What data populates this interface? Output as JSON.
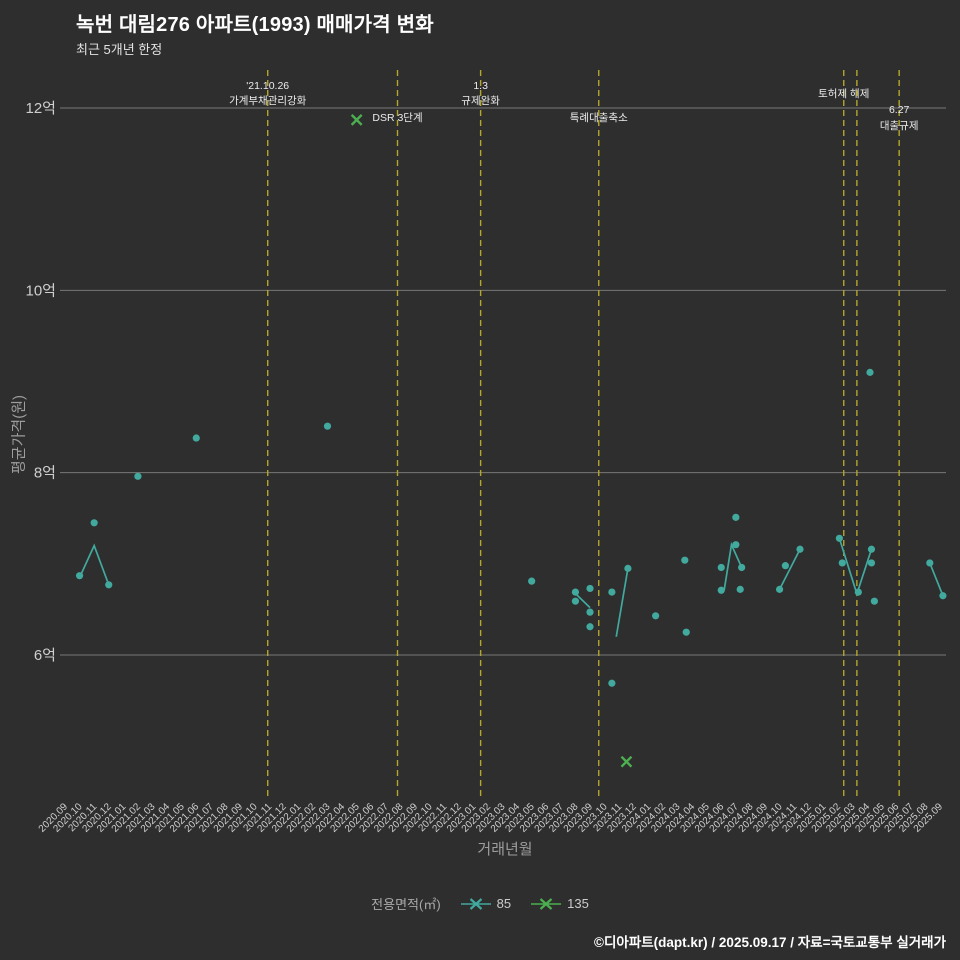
{
  "legend": {
    "title": "전용면적(㎡)",
    "items": [
      {
        "label": "85",
        "color": "#41a99e",
        "marker": "x-line"
      },
      {
        "label": "135",
        "color": "#4caf50",
        "marker": "x-line"
      }
    ]
  },
  "footer": {
    "text": "©디아파트(dapt.kr) / 2025.09.17 / 자료=국토교통부 실거래가"
  },
  "chart_data": {
    "type": "scatter",
    "title": "녹번 대림276 아파트(1993) 매매가격 변화",
    "subtitle": "최근 5개년 한정",
    "xlabel": "거래년월",
    "ylabel": "평균가격(원)",
    "unit": "억원",
    "grid": true,
    "legend_position": "bottom",
    "ylim": [
      4.4,
      12.4
    ],
    "y_ticks": [
      {
        "label": "12억",
        "value": 12
      },
      {
        "label": "10억",
        "value": 10
      },
      {
        "label": "8억",
        "value": 8
      },
      {
        "label": "6억",
        "value": 6
      }
    ],
    "x_tick_labels": [
      "2020.09",
      "2020.10",
      "2020.11",
      "2020.12",
      "2021.01",
      "2021.02",
      "2021.03",
      "2021.04",
      "2021.05",
      "2021.06",
      "2021.07",
      "2021.08",
      "2021.09",
      "2021.10",
      "2021.11",
      "2021.12",
      "2022.01",
      "2022.02",
      "2022.03",
      "2022.04",
      "2022.05",
      "2022.06",
      "2022.07",
      "2022.08",
      "2022.09",
      "2022.10",
      "2022.11",
      "2022.12",
      "2023.01",
      "2023.02",
      "2023.03",
      "2023.04",
      "2023.05",
      "2023.06",
      "2023.07",
      "2023.08",
      "2023.09",
      "2023.10",
      "2023.11",
      "2023.12",
      "2024.01",
      "2024.02",
      "2024.03",
      "2024.04",
      "2024.05",
      "2024.06",
      "2024.07",
      "2024.08",
      "2024.09",
      "2024.10",
      "2024.11",
      "2024.12",
      "2025.01",
      "2025.02",
      "2025.03",
      "2025.04",
      "2025.05",
      "2025.06",
      "2025.07",
      "2025.08",
      "2025.09"
    ],
    "colors": {
      "background": "#2e2e2e",
      "grid": "#787878",
      "tick": "#cfcfcf",
      "axis_label": "#9d9d9d",
      "event": "#b4a62a",
      "annotation": "#ececec"
    },
    "events": [
      {
        "month": 13.9,
        "labels": [
          {
            "text": "'21.10.26",
            "y": 89
          },
          {
            "text": "가계부채관리강화",
            "y": 104
          }
        ]
      },
      {
        "month": 22.8,
        "labels": [
          {
            "text": "DSR 3단계",
            "y": 121
          }
        ]
      },
      {
        "month": 28.5,
        "labels": [
          {
            "text": "1.3",
            "y": 89
          },
          {
            "text": "규제완화",
            "y": 104
          }
        ]
      },
      {
        "month": 36.6,
        "labels": [
          {
            "text": "특례대출축소",
            "y": 121
          }
        ]
      },
      {
        "month": 53.4,
        "labels": [
          {
            "text": "토허제 해제",
            "y": 97
          }
        ]
      },
      {
        "month": 54.3,
        "labels": []
      },
      {
        "month": 57.2,
        "labels": [
          {
            "text": "6.27",
            "y": 113
          },
          {
            "text": "대출규제",
            "y": 129
          }
        ]
      }
    ],
    "series": [
      {
        "name": "85",
        "marker": "circle",
        "color": "#41a99e",
        "points": [
          [
            1,
            6.87
          ],
          [
            2,
            7.45
          ],
          [
            3,
            6.77
          ],
          [
            5,
            7.96
          ],
          [
            9,
            8.38
          ],
          [
            18,
            8.51
          ],
          [
            32,
            6.81
          ],
          [
            35,
            6.69
          ],
          [
            35,
            6.59
          ],
          [
            36,
            6.73
          ],
          [
            36,
            6.47
          ],
          [
            36,
            6.31
          ],
          [
            37.5,
            6.69
          ],
          [
            37.5,
            5.69
          ],
          [
            38.6,
            6.95
          ],
          [
            40.5,
            6.43
          ],
          [
            42.5,
            7.04
          ],
          [
            42.6,
            6.25
          ],
          [
            45,
            6.96
          ],
          [
            45,
            6.71
          ],
          [
            46,
            7.51
          ],
          [
            46,
            7.21
          ],
          [
            46.3,
            6.72
          ],
          [
            46.4,
            6.96
          ],
          [
            49,
            6.72
          ],
          [
            49.4,
            6.98
          ],
          [
            50.4,
            7.16
          ],
          [
            53.1,
            7.28
          ],
          [
            53.3,
            7.01
          ],
          [
            54.4,
            6.69
          ],
          [
            55.3,
            7.16
          ],
          [
            55.3,
            7.01
          ],
          [
            55.5,
            6.59
          ],
          [
            55.2,
            9.1
          ],
          [
            59.3,
            7.01
          ],
          [
            60.2,
            6.65
          ]
        ],
        "lines": [
          [
            [
              1,
              6.85
            ],
            [
              2,
              7.2
            ],
            [
              3,
              6.77
            ]
          ],
          [
            [
              34.9,
              6.69
            ],
            [
              36.0,
              6.52
            ]
          ],
          [
            [
              37.8,
              6.2
            ],
            [
              38.6,
              6.95
            ]
          ],
          [
            [
              45.2,
              6.71
            ],
            [
              45.7,
              7.21
            ],
            [
              46.4,
              6.96
            ]
          ],
          [
            [
              49,
              6.72
            ],
            [
              50.4,
              7.16
            ]
          ],
          [
            [
              53.1,
              7.28
            ],
            [
              54.3,
              6.67
            ],
            [
              55.3,
              7.16
            ]
          ],
          [
            [
              59.3,
              7.01
            ],
            [
              60.2,
              6.65
            ]
          ]
        ]
      },
      {
        "name": "135",
        "marker": "x",
        "color": "#4caf50",
        "points": [
          [
            20,
            11.87
          ],
          [
            38.5,
            4.83
          ]
        ],
        "lines": []
      }
    ]
  }
}
